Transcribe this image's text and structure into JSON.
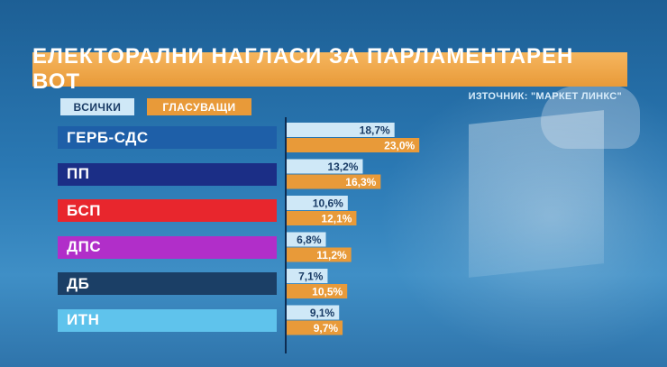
{
  "title": "ЕЛЕКТОРАЛНИ НАГЛАСИ ЗА ПАРЛАМЕНТАРЕН ВОТ",
  "source": "ИЗТОЧНИК: \"МАРКЕТ ЛИНКС\"",
  "legend": {
    "all": "ВСИЧКИ",
    "voters": "ГЛАСУВАЩИ"
  },
  "colors": {
    "all": "#cfe8f7",
    "voters": "#e89a39",
    "title_bg": "#f2aa4f",
    "parties": [
      "#1e5fa8",
      "#1b2e86",
      "#e8262d",
      "#b12ec9",
      "#1b3f66",
      "#5fc3ec"
    ]
  },
  "chart_data": {
    "type": "bar",
    "orientation": "horizontal",
    "title": "ЕЛЕКТОРАЛНИ НАГЛАСИ ЗА ПАРЛАМЕНТАРЕН ВОТ",
    "categories": [
      "ГЕРБ-СДС",
      "ПП",
      "БСП",
      "ДПС",
      "ДБ",
      "ИТН"
    ],
    "series": [
      {
        "name": "ВСИЧКИ",
        "values": [
          18.7,
          13.2,
          10.6,
          6.8,
          7.1,
          9.1
        ],
        "labels": [
          "18,7%",
          "13,2%",
          "10,6%",
          "6,8%",
          "7,1%",
          "9,1%"
        ]
      },
      {
        "name": "ГЛАСУВАЩИ",
        "values": [
          23.0,
          16.3,
          12.1,
          11.2,
          10.5,
          9.7
        ],
        "labels": [
          "23,0%",
          "16,3%",
          "12,1%",
          "11,2%",
          "10,5%",
          "9,7%"
        ]
      }
    ],
    "unit": "%",
    "legend_position": "top-left"
  }
}
